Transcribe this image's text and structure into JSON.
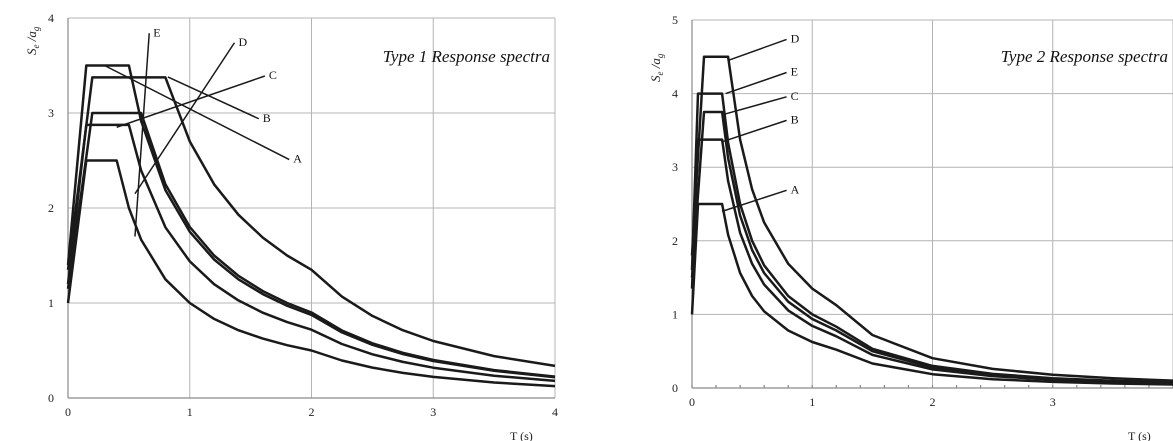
{
  "chart_data": [
    {
      "type": "line",
      "title": "Type 1 Response spectra",
      "ylabel_main": "S",
      "ylabel_sub1": "e",
      "ylabel_slash": " /a",
      "ylabel_sub2": "g",
      "xlabel": "T (s)",
      "xlim": [
        0,
        4
      ],
      "ylim": [
        0,
        4
      ],
      "x_ticks": [
        "0",
        "1",
        "2",
        "3",
        "4"
      ],
      "y_ticks": [
        "0",
        "1",
        "2",
        "3",
        "4"
      ],
      "grid": true,
      "series": [
        {
          "name": "A",
          "label_xy": [
            1.85,
            2.52
          ],
          "x": [
            0,
            0.05,
            0.1,
            0.15,
            0.15,
            0.2,
            0.3,
            0.4,
            0.4,
            0.5,
            0.6,
            0.8,
            1.0,
            1.2,
            1.4,
            1.6,
            1.8,
            2.0,
            2.0,
            2.25,
            2.5,
            2.75,
            3.0,
            3.5,
            4.0
          ],
          "y": [
            1.0,
            1.5,
            2.0,
            2.5,
            2.5,
            2.5,
            2.5,
            2.5,
            2.5,
            2.0,
            1.667,
            1.25,
            1.0,
            0.833,
            0.714,
            0.625,
            0.556,
            0.5,
            0.5,
            0.395,
            0.32,
            0.264,
            0.222,
            0.163,
            0.125
          ]
        },
        {
          "name": "B",
          "label_xy": [
            1.6,
            2.95
          ],
          "x": [
            0,
            0.05,
            0.1,
            0.15,
            0.15,
            0.2,
            0.3,
            0.4,
            0.5,
            0.5,
            0.6,
            0.8,
            1.0,
            1.2,
            1.4,
            1.6,
            1.8,
            2.0,
            2.0,
            2.25,
            2.5,
            2.75,
            3.0,
            3.5,
            4.0
          ],
          "y": [
            1.2,
            1.758,
            2.317,
            2.875,
            2.875,
            2.875,
            2.875,
            2.875,
            2.875,
            2.875,
            2.396,
            1.797,
            1.438,
            1.198,
            1.027,
            0.898,
            0.799,
            0.719,
            0.719,
            0.568,
            0.46,
            0.38,
            0.319,
            0.235,
            0.18
          ]
        },
        {
          "name": "C",
          "label_xy": [
            1.65,
            3.4
          ],
          "x": [
            0,
            0.05,
            0.1,
            0.15,
            0.2,
            0.2,
            0.3,
            0.4,
            0.5,
            0.6,
            0.6,
            0.8,
            1.0,
            1.2,
            1.4,
            1.6,
            1.8,
            2.0,
            2.0,
            2.25,
            2.5,
            2.75,
            3.0,
            3.5,
            4.0
          ],
          "y": [
            1.15,
            1.613,
            2.075,
            2.538,
            3.0,
            3.0,
            3.0,
            3.0,
            3.0,
            3.0,
            3.0,
            2.25,
            1.8,
            1.5,
            1.286,
            1.125,
            1.0,
            0.9,
            0.9,
            0.711,
            0.576,
            0.476,
            0.4,
            0.294,
            0.225
          ]
        },
        {
          "name": "D",
          "label_xy": [
            1.4,
            3.75
          ],
          "x": [
            0,
            0.05,
            0.1,
            0.15,
            0.2,
            0.2,
            0.4,
            0.6,
            0.8,
            0.8,
            1.0,
            1.2,
            1.4,
            1.6,
            1.8,
            2.0,
            2.0,
            2.25,
            2.5,
            2.75,
            3.0,
            3.5,
            4.0
          ],
          "y": [
            1.35,
            1.856,
            2.363,
            2.869,
            3.375,
            3.375,
            3.375,
            3.375,
            3.375,
            3.375,
            2.7,
            2.25,
            1.929,
            1.688,
            1.5,
            1.35,
            1.35,
            1.067,
            0.864,
            0.714,
            0.6,
            0.441,
            0.338
          ]
        },
        {
          "name": "E",
          "label_xy": [
            0.7,
            3.85
          ],
          "x": [
            0,
            0.05,
            0.1,
            0.15,
            0.15,
            0.3,
            0.5,
            0.5,
            0.6,
            0.8,
            1.0,
            1.2,
            1.4,
            1.6,
            1.8,
            2.0,
            2.0,
            2.25,
            2.5,
            2.75,
            3.0,
            3.5,
            4.0
          ],
          "y": [
            1.4,
            2.1,
            2.8,
            3.5,
            3.5,
            3.5,
            3.5,
            3.5,
            2.917,
            2.188,
            1.75,
            1.458,
            1.25,
            1.094,
            0.972,
            0.875,
            0.875,
            0.691,
            0.56,
            0.463,
            0.389,
            0.286,
            0.219
          ]
        }
      ]
    },
    {
      "type": "line",
      "title": "Type 2 Response spectra",
      "ylabel_main": "S",
      "ylabel_sub1": "e",
      "ylabel_slash": " /a",
      "ylabel_sub2": "g",
      "xlabel": "T (s)",
      "xlim": [
        0,
        4
      ],
      "ylim": [
        0,
        5
      ],
      "x_ticks": [
        "0",
        "1",
        "2",
        "3",
        ""
      ],
      "y_ticks": [
        "0",
        "1",
        "2",
        "3",
        "4",
        "5"
      ],
      "grid": true,
      "series": [
        {
          "name": "A",
          "label_xy": [
            0.82,
            2.7
          ],
          "x": [
            0,
            0.025,
            0.05,
            0.05,
            0.15,
            0.25,
            0.25,
            0.3,
            0.4,
            0.5,
            0.6,
            0.8,
            1.0,
            1.2,
            1.2,
            1.5,
            2.0,
            2.5,
            3.0,
            3.5,
            4.0
          ],
          "y": [
            1.0,
            1.75,
            2.5,
            2.5,
            2.5,
            2.5,
            2.5,
            2.083,
            1.5625,
            1.25,
            1.042,
            0.781,
            0.625,
            0.521,
            0.521,
            0.333,
            0.1875,
            0.12,
            0.083,
            0.061,
            0.047
          ]
        },
        {
          "name": "B",
          "label_xy": [
            0.82,
            3.65
          ],
          "x": [
            0,
            0.025,
            0.05,
            0.05,
            0.15,
            0.25,
            0.25,
            0.3,
            0.4,
            0.5,
            0.6,
            0.8,
            1.0,
            1.2,
            1.2,
            1.5,
            2.0,
            2.5,
            3.0,
            3.5,
            4.0
          ],
          "y": [
            1.35,
            2.363,
            3.375,
            3.375,
            3.375,
            3.375,
            3.375,
            2.813,
            2.109,
            1.688,
            1.406,
            1.055,
            0.844,
            0.703,
            0.703,
            0.45,
            0.253,
            0.162,
            0.1125,
            0.083,
            0.063
          ]
        },
        {
          "name": "C",
          "label_xy": [
            0.82,
            3.97
          ],
          "x": [
            0,
            0.05,
            0.1,
            0.1,
            0.175,
            0.25,
            0.25,
            0.3,
            0.4,
            0.5,
            0.6,
            0.8,
            1.0,
            1.2,
            1.2,
            1.5,
            2.0,
            2.5,
            3.0,
            3.5,
            4.0
          ],
          "y": [
            1.5,
            2.625,
            3.75,
            3.75,
            3.75,
            3.75,
            3.75,
            3.125,
            2.344,
            1.875,
            1.5625,
            1.172,
            0.9375,
            0.781,
            0.781,
            0.5,
            0.281,
            0.18,
            0.125,
            0.092,
            0.07
          ]
        },
        {
          "name": "D",
          "label_xy": [
            0.82,
            4.75
          ],
          "x": [
            0,
            0.05,
            0.1,
            0.1,
            0.2,
            0.3,
            0.3,
            0.4,
            0.5,
            0.6,
            0.8,
            1.0,
            1.2,
            1.2,
            1.5,
            2.0,
            2.5,
            3.0,
            3.5,
            4.0
          ],
          "y": [
            1.8,
            3.15,
            4.5,
            4.5,
            4.5,
            4.5,
            4.5,
            3.375,
            2.7,
            2.25,
            1.6875,
            1.35,
            1.125,
            1.125,
            0.72,
            0.405,
            0.259,
            0.18,
            0.132,
            0.101
          ]
        },
        {
          "name": "E",
          "label_xy": [
            0.82,
            4.3
          ],
          "x": [
            0,
            0.025,
            0.05,
            0.05,
            0.15,
            0.25,
            0.25,
            0.3,
            0.4,
            0.5,
            0.6,
            0.8,
            1.0,
            1.2,
            1.2,
            1.5,
            2.0,
            2.5,
            3.0,
            3.5,
            4.0
          ],
          "y": [
            1.6,
            2.8,
            4.0,
            4.0,
            4.0,
            4.0,
            4.0,
            3.333,
            2.5,
            2.0,
            1.667,
            1.25,
            1.0,
            0.833,
            0.833,
            0.533,
            0.3,
            0.192,
            0.133,
            0.098,
            0.075
          ]
        }
      ]
    }
  ]
}
